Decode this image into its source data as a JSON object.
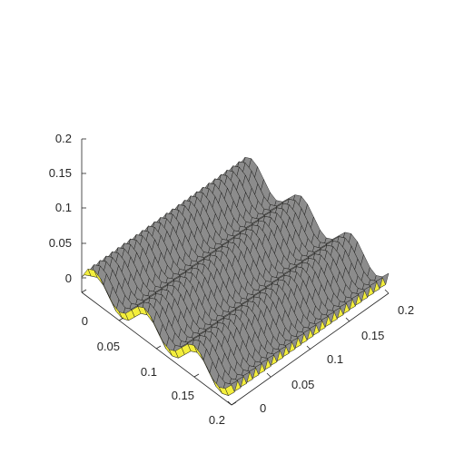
{
  "chart_data": {
    "type": "surface",
    "title": "",
    "xlabel": "",
    "ylabel": "",
    "zlabel": "",
    "grid": false,
    "xlim": [
      0,
      0.2
    ],
    "ylim": [
      0,
      0.2
    ],
    "zlim": [
      0,
      0.2
    ],
    "x_ticks": [
      "0",
      "0.05",
      "0.1",
      "0.15",
      "0.2"
    ],
    "y_ticks": [
      "0",
      "0.05",
      "0.1",
      "0.15",
      "0.2"
    ],
    "z_ticks": [
      "0",
      "0.05",
      "0.1",
      "0.15",
      "0.2"
    ],
    "surface": {
      "x_range": [
        0,
        0.2
      ],
      "y_range": [
        0,
        0.2
      ],
      "z_base": 0.02,
      "z_amplitude": 0.015,
      "ridge_periods_along_x": 3,
      "spike_count_along_y": 26,
      "spike_amplitude": 0.012,
      "face_color": "#f3ee3c",
      "edge_color": "#1a1a1a",
      "shade_color": "#8c8c8c"
    }
  }
}
